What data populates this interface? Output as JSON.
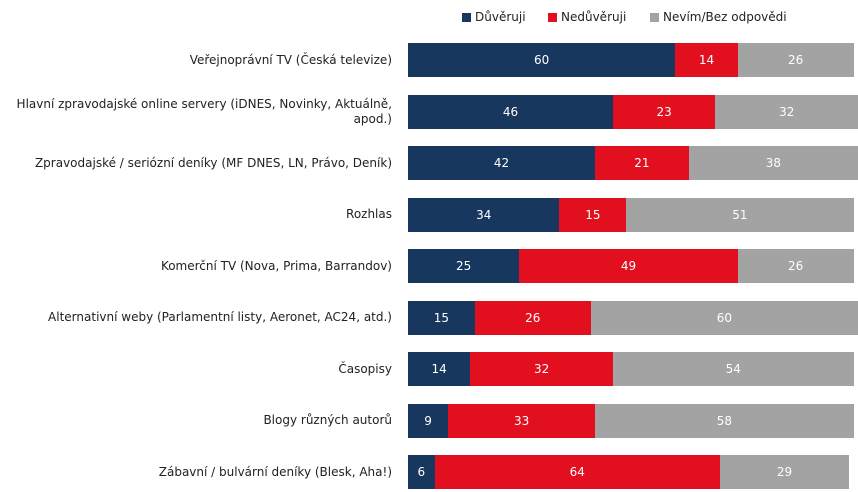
{
  "chart_data": {
    "type": "stacked-bar",
    "categories": [
      "Veřejnoprávní TV (Česká televize)",
      "Hlavní zpravodajské online servery (iDNES, Novinky, Aktuálně, apod.)",
      "Zpravodajské / seriózní deníky (MF DNES, LN, Právo, Deník)",
      "Rozhlas",
      "Komerční TV (Nova, Prima, Barrandov)",
      "Alternativní weby (Parlamentní listy, Aeronet, AC24, atd.)",
      "Časopisy",
      "Blogy různých autorů",
      "Zábavní / bulvární deníky (Blesk, Aha!)"
    ],
    "series": [
      {
        "name": "Důvěruji",
        "color": "#17375e",
        "values": [
          60,
          46,
          42,
          34,
          25,
          15,
          14,
          9,
          6
        ]
      },
      {
        "name": "Nedůvěruji",
        "color": "#e2101f",
        "values": [
          14,
          23,
          21,
          15,
          49,
          26,
          32,
          33,
          64
        ]
      },
      {
        "name": "Nevím/Bez odpovědi",
        "color": "#a3a3a3",
        "values": [
          26,
          32,
          38,
          51,
          26,
          60,
          54,
          58,
          29
        ]
      }
    ],
    "legend": "top"
  }
}
